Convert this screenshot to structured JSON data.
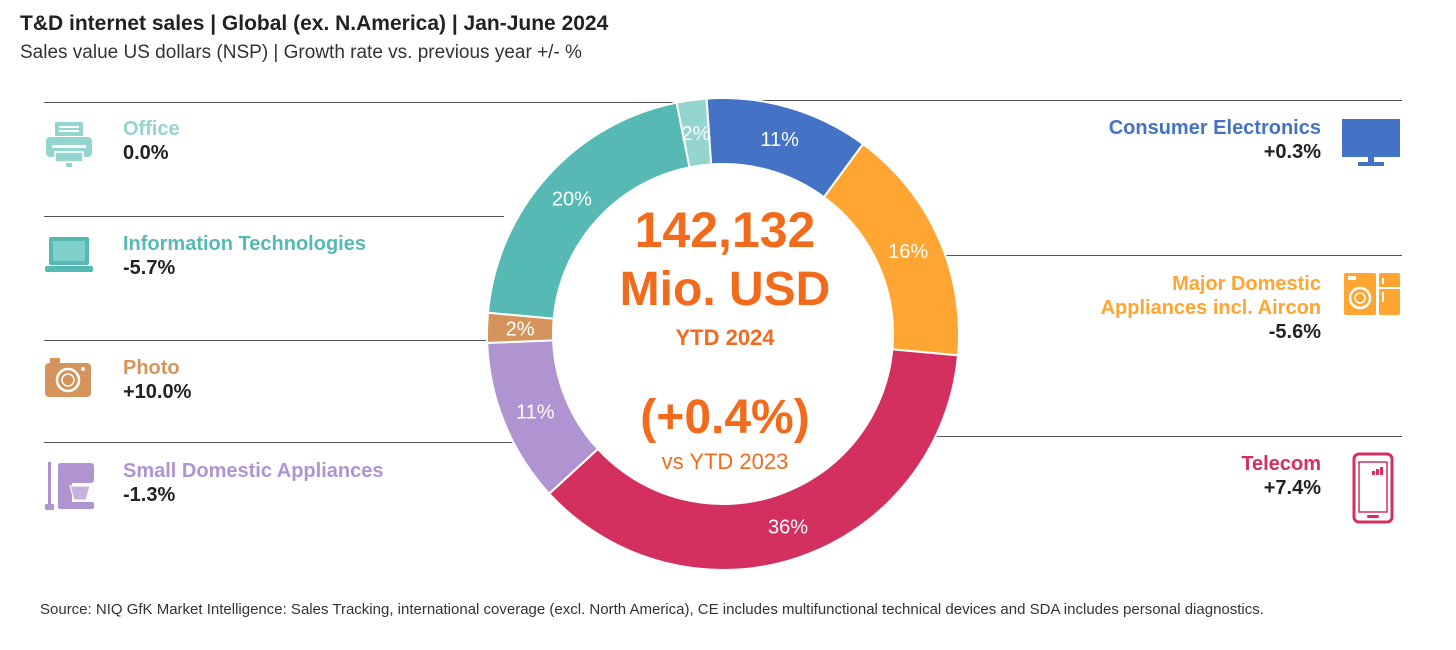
{
  "header": {
    "title": "T&D internet sales | Global (ex. N.America) | Jan-June 2024",
    "subtitle": "Sales value US dollars (NSP) | Growth rate vs. previous year +/- %"
  },
  "center": {
    "total": "142,132",
    "unit": "Mio. USD",
    "period": "YTD 2024",
    "growth": "(+0.4%)",
    "comparison": "vs YTD 2023"
  },
  "footer": {
    "source": "Source: NIQ GfK Market Intelligence: Sales Tracking, international coverage (excl. North America), CE includes multifunctional technical devices and SDA includes personal diagnostics."
  },
  "chart_data": {
    "type": "pie",
    "slices": [
      {
        "label": "Consumer Electronics",
        "share": 11,
        "share_label": "11%",
        "growth": "+0.3%",
        "color": "#4472c4",
        "icon": "tv-icon"
      },
      {
        "label": "Major Domestic Appliances incl. Aircon",
        "label_lines": [
          "Major Domestic",
          "Appliances incl. Aircon"
        ],
        "share": 16,
        "share_label": "16%",
        "growth": "-5.6%",
        "color": "#ffa531",
        "icon": "washing-machine-icon"
      },
      {
        "label": "Telecom",
        "share": 36,
        "share_label": "36%",
        "growth": "+7.4%",
        "color": "#d4305f",
        "icon": "smartphone-icon"
      },
      {
        "label": "Small Domestic Appliances",
        "share": 11,
        "share_label": "11%",
        "growth": "-1.3%",
        "color": "#b094d2",
        "icon": "mixer-icon"
      },
      {
        "label": "Photo",
        "share": 2,
        "share_label": "2%",
        "growth": "+10.0%",
        "color": "#d4945c",
        "icon": "camera-icon"
      },
      {
        "label": "Information Technologies",
        "share": 20,
        "share_label": "20%",
        "growth": "-5.7%",
        "color": "#57b9b4",
        "icon": "laptop-icon"
      },
      {
        "label": "Office",
        "share": 2,
        "share_label": "2%",
        "growth": "0.0%",
        "color": "#94d5d0",
        "icon": "printer-icon"
      }
    ]
  }
}
